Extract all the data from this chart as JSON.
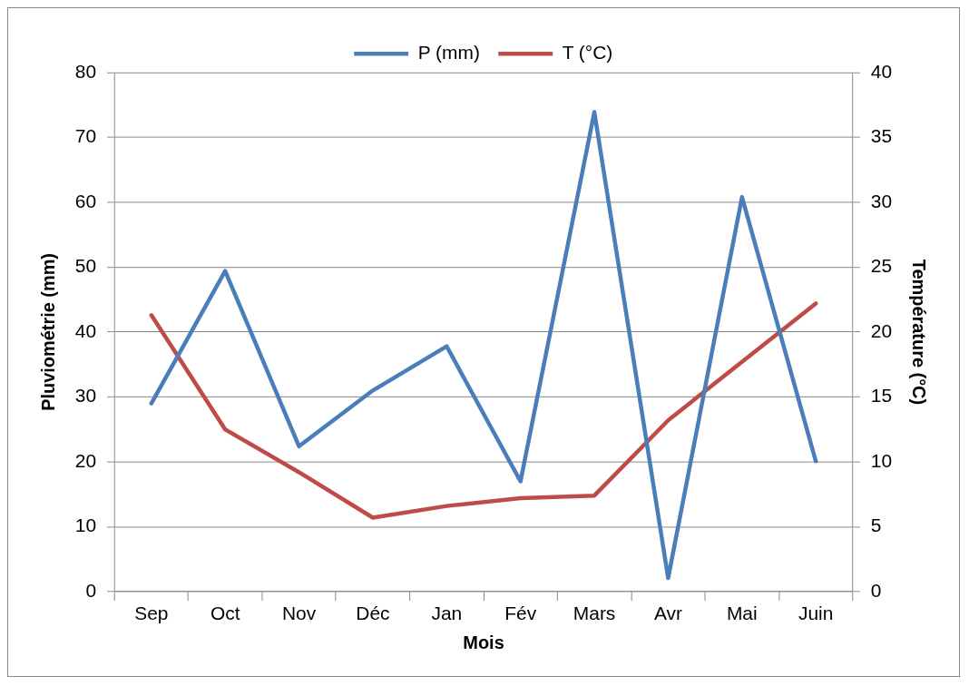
{
  "chart_data": {
    "type": "line",
    "xlabel": "Mois",
    "ylabel": "Pluviométrie (mm)",
    "y2label": "Température (°C)",
    "categories": [
      "Sep",
      "Oct",
      "Nov",
      "Déc",
      "Jan",
      "Fév",
      "Mars",
      "Avr",
      "Mai",
      "Juin"
    ],
    "series": [
      {
        "name": "P (mm)",
        "color": "#4a7ebb",
        "values": [
          29,
          49.4,
          22.4,
          31,
          37.8,
          17,
          73.9,
          2.1,
          60.8,
          20.1
        ]
      },
      {
        "name": "T (°C)",
        "color": "#be4b48",
        "axis": "y2",
        "values": [
          21.3,
          12.5,
          9.2,
          5.7,
          6.6,
          7.2,
          7.4,
          13.2,
          17.7,
          22.2
        ]
      }
    ],
    "ylim": [
      0,
      80
    ],
    "yticks": [
      0,
      10,
      20,
      30,
      40,
      50,
      60,
      70,
      80
    ],
    "y2lim": [
      0,
      40
    ],
    "y2ticks": [
      0,
      5,
      10,
      15,
      20,
      25,
      30,
      35,
      40
    ],
    "grid": "y",
    "legend": "top",
    "marker": "none",
    "line_style": "solid"
  }
}
